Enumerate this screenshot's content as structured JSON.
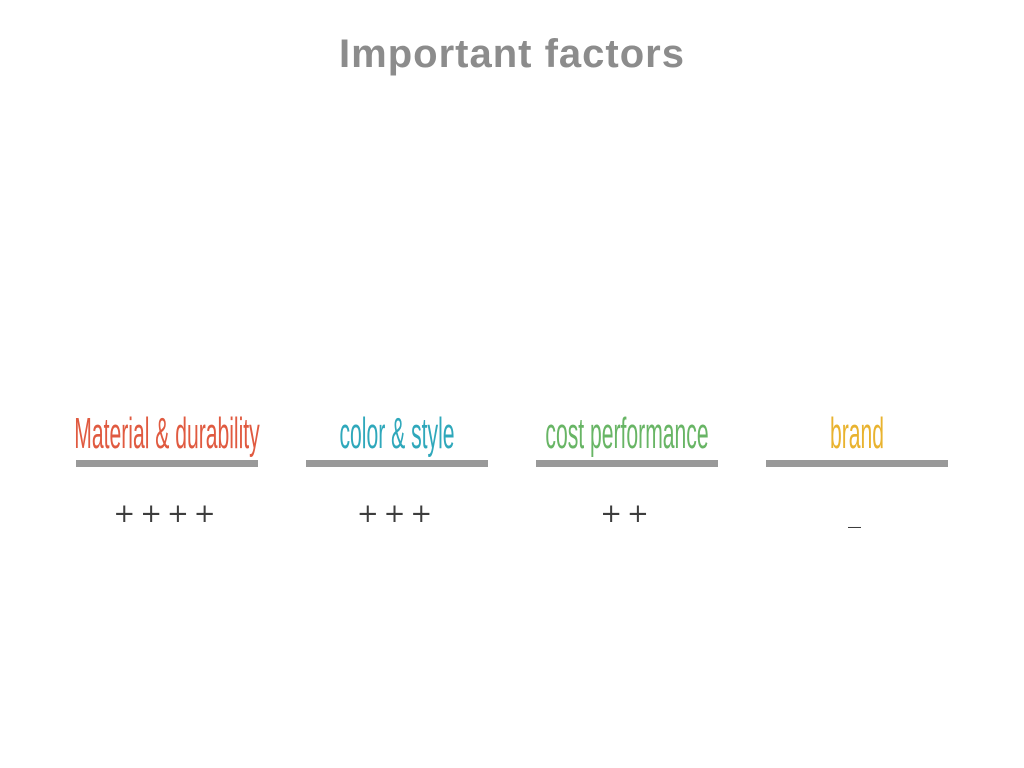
{
  "slide": {
    "title": "Important factors",
    "title_color": "#8c8c8c",
    "background": "#ffffff"
  },
  "divider_color": "#999999",
  "rating_color": "#3d3d3d",
  "factors": [
    {
      "label": "Material & durability",
      "color": "#e05a40",
      "rating": "++++"
    },
    {
      "label": "color & style",
      "color": "#2fa8bb",
      "rating": "+++"
    },
    {
      "label": "cost performance",
      "color": "#68b565",
      "rating": "++"
    },
    {
      "label": "brand",
      "color": "#e9b32f",
      "rating": "_"
    }
  ]
}
